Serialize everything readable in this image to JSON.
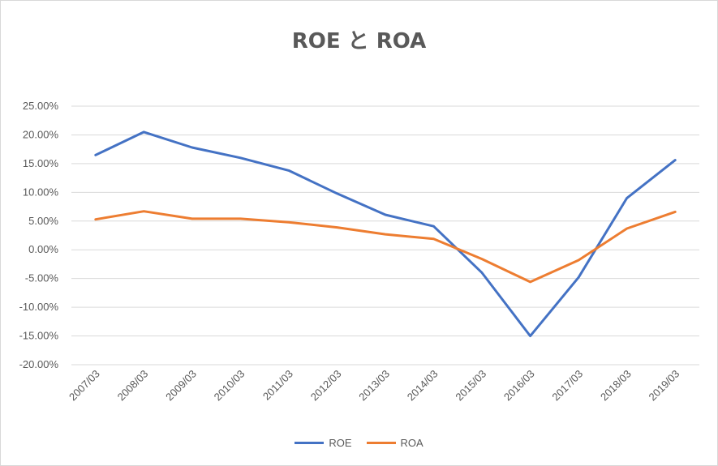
{
  "chart_data": {
    "type": "line",
    "title": "ROE と ROA",
    "categories": [
      "2007/03",
      "2008/03",
      "2009/03",
      "2010/03",
      "2011/03",
      "2012/03",
      "2013/03",
      "2014/03",
      "2015/03",
      "2016/03",
      "2017/03",
      "2018/03",
      "2019/03"
    ],
    "series": [
      {
        "name": "ROE",
        "color": "#4472c4",
        "values": [
          16.5,
          20.5,
          17.8,
          16.0,
          13.8,
          9.8,
          6.1,
          4.1,
          -4.0,
          -15.0,
          -4.8,
          9.0,
          15.6
        ]
      },
      {
        "name": "ROA",
        "color": "#ed7d31",
        "values": [
          5.3,
          6.7,
          5.4,
          5.4,
          4.8,
          3.9,
          2.7,
          1.9,
          -1.6,
          -5.6,
          -1.8,
          3.7,
          6.6
        ]
      }
    ],
    "yticks": [
      "25.00%",
      "20.00%",
      "15.00%",
      "10.00%",
      "5.00%",
      "0.00%",
      "-5.00%",
      "-10.00%",
      "-15.00%",
      "-20.00%"
    ],
    "ylim": [
      -20,
      25
    ],
    "grid": true,
    "legend_position": "bottom"
  }
}
